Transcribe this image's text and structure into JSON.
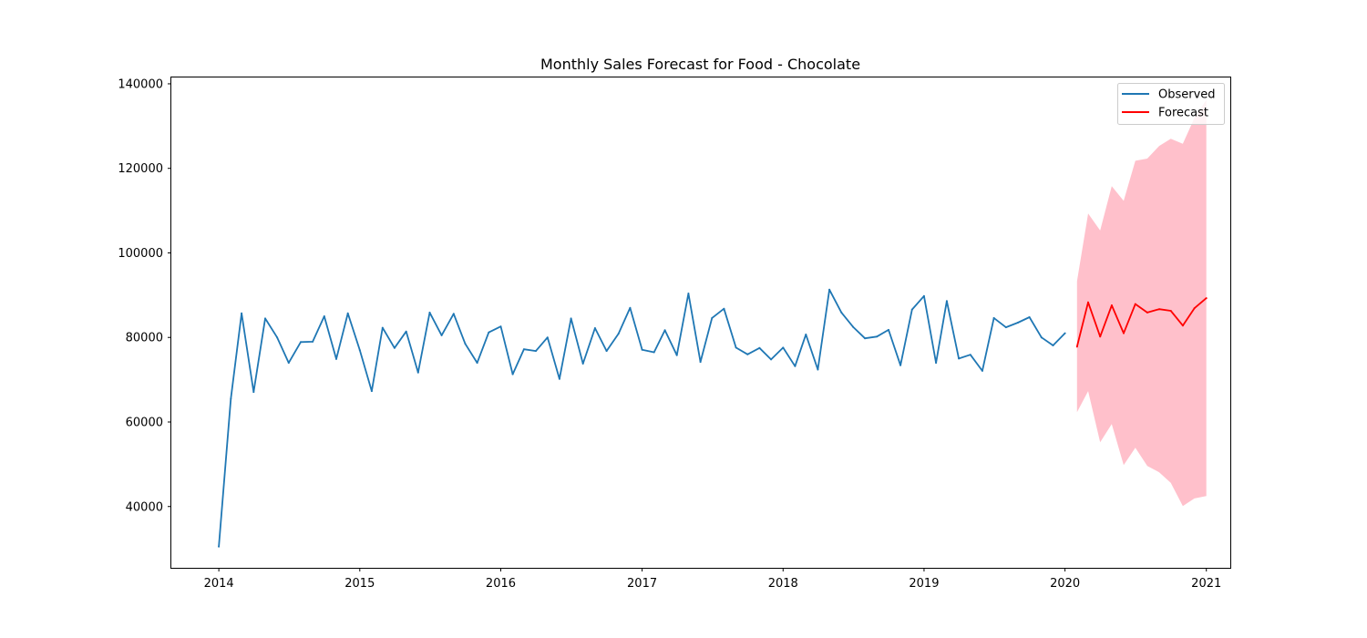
{
  "chart_data": {
    "type": "line",
    "title": "Monthly Sales Forecast for Food - Chocolate",
    "xlabel": "",
    "ylabel": "",
    "xlim": [
      "2013-08-31",
      "2021-03-04"
    ],
    "ylim": [
      25500,
      141500
    ],
    "x_ticks": [
      "2014",
      "2015",
      "2016",
      "2017",
      "2018",
      "2019",
      "2020",
      "2021"
    ],
    "y_ticks": [
      "40000",
      "60000",
      "80000",
      "100000",
      "120000",
      "140000"
    ],
    "grid": false,
    "legend": {
      "position": "upper right",
      "entries": [
        "Observed",
        "Forecast"
      ]
    },
    "colors": {
      "observed": "#1f77b4",
      "forecast": "#ff0000",
      "confidence": "#ffc0cb"
    },
    "series": [
      {
        "name": "Observed",
        "x": [
          "2014-01",
          "2014-02",
          "2014-03",
          "2014-04",
          "2014-05",
          "2014-06",
          "2014-07",
          "2014-08",
          "2014-09",
          "2014-10",
          "2014-11",
          "2014-12",
          "2015-01",
          "2015-02",
          "2015-03",
          "2015-04",
          "2015-05",
          "2015-06",
          "2015-07",
          "2015-08",
          "2015-09",
          "2015-10",
          "2015-11",
          "2015-12",
          "2016-01",
          "2016-02",
          "2016-03",
          "2016-04",
          "2016-05",
          "2016-06",
          "2016-07",
          "2016-08",
          "2016-09",
          "2016-10",
          "2016-11",
          "2016-12",
          "2017-01",
          "2017-02",
          "2017-03",
          "2017-04",
          "2017-05",
          "2017-06",
          "2017-07",
          "2017-08",
          "2017-09",
          "2017-10",
          "2017-11",
          "2017-12",
          "2018-01",
          "2018-02",
          "2018-03",
          "2018-04",
          "2018-05",
          "2018-06",
          "2018-07",
          "2018-08",
          "2018-09",
          "2018-10",
          "2018-11",
          "2018-12",
          "2019-01",
          "2019-02",
          "2019-03",
          "2019-04",
          "2019-05",
          "2019-06",
          "2019-07",
          "2019-08",
          "2019-09",
          "2019-10",
          "2019-11",
          "2019-12",
          "2020-01"
        ],
        "values": [
          30500,
          65500,
          85700,
          67100,
          84500,
          80000,
          74000,
          78900,
          79000,
          85000,
          74900,
          85700,
          77000,
          67300,
          82300,
          77500,
          81400,
          71700,
          85900,
          80500,
          85600,
          78500,
          74000,
          81200,
          82600,
          71300,
          77200,
          76800,
          80000,
          70200,
          84500,
          73800,
          82200,
          76800,
          80900,
          87000,
          77100,
          76500,
          81700,
          75800,
          90400,
          74200,
          84600,
          86800,
          77600,
          76000,
          77500,
          74800,
          77600,
          73200,
          80700,
          72400,
          91300,
          85900,
          82500,
          79800,
          80200,
          81800,
          73400,
          86600,
          89800,
          74000,
          88600,
          75000,
          75900,
          72100,
          84600,
          82400,
          83500,
          84800,
          80000,
          78100,
          81000
        ]
      },
      {
        "name": "Forecast",
        "x": [
          "2020-02",
          "2020-03",
          "2020-04",
          "2020-05",
          "2020-06",
          "2020-07",
          "2020-08",
          "2020-09",
          "2020-10",
          "2020-11",
          "2020-12",
          "2021-01"
        ],
        "values": [
          77800,
          88300,
          80200,
          87600,
          81000,
          87900,
          85900,
          86700,
          86300,
          82800,
          86900,
          89300
        ],
        "lower": [
          62300,
          67300,
          55200,
          59500,
          49800,
          53900,
          49600,
          48100,
          45600,
          40100,
          41900,
          42500
        ],
        "upper": [
          93300,
          109300,
          105300,
          115800,
          112300,
          121800,
          122300,
          125300,
          127000,
          125800,
          131900,
          136200
        ]
      }
    ]
  }
}
